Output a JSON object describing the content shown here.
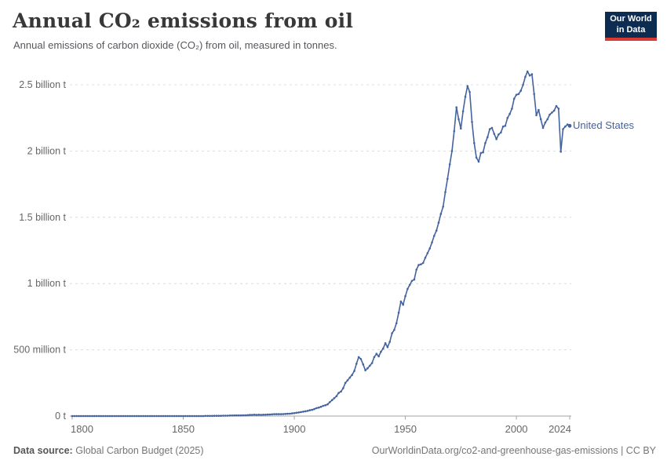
{
  "header": {
    "title": "Annual CO₂ emissions from oil",
    "subtitle": "Annual emissions of carbon dioxide (CO₂) from oil, measured in tonnes.",
    "logo": {
      "line1": "Our World",
      "line2": "in Data"
    }
  },
  "footer": {
    "data_source_label": "Data source:",
    "data_source_value": "Global Carbon Budget (2025)",
    "attribution": "OurWorldinData.org/co2-and-greenhouse-gas-emissions | CC BY"
  },
  "colors": {
    "series_line": "#44639F",
    "logo_navy": "#0C2C52",
    "logo_red": "#D93B33",
    "grid": "#DCDCDC",
    "axis": "#A3A3A3",
    "tick_text": "#666666"
  },
  "chart_data": {
    "type": "line",
    "title": "Annual CO₂ emissions from oil",
    "subtitle": "Annual emissions of carbon dioxide (CO₂) from oil, measured in tonnes.",
    "xlabel": "",
    "ylabel": "",
    "values_unit": "million tonnes of CO₂",
    "xlim": [
      1800,
      2024
    ],
    "ylim": [
      0,
      2600
    ],
    "grid": "horizontal-dashed",
    "legend": "end-of-line-label",
    "x_ticks": [
      1800,
      1850,
      1900,
      1950,
      2000,
      2024
    ],
    "y_ticks": [
      {
        "value": 0,
        "label": "0 t"
      },
      {
        "value": 500,
        "label": "500 million t"
      },
      {
        "value": 1000,
        "label": "1 billion t"
      },
      {
        "value": 1500,
        "label": "1.5 billion t"
      },
      {
        "value": 2000,
        "label": "2 billion t"
      },
      {
        "value": 2500,
        "label": "2.5 billion t"
      }
    ],
    "series": [
      {
        "name": "United States",
        "color": "#44639F",
        "year_start": 1800,
        "year_end": 2024,
        "values": [
          0,
          0,
          0,
          0,
          0,
          0,
          0,
          0,
          0,
          0,
          0,
          0,
          0,
          0,
          0,
          0,
          0,
          0,
          0,
          0,
          0,
          0,
          0,
          0,
          0,
          0,
          0,
          0,
          0,
          0,
          0,
          0,
          0,
          0,
          0,
          0,
          0,
          0,
          0,
          0,
          0,
          0,
          0,
          0,
          0,
          0,
          0,
          0,
          0,
          0,
          0,
          0,
          0,
          0,
          0,
          0,
          0,
          0,
          0,
          0,
          1,
          1,
          1,
          1,
          2,
          2,
          2,
          2,
          3,
          3,
          3,
          4,
          4,
          5,
          5,
          5,
          5,
          6,
          6,
          7,
          8,
          9,
          10,
          9,
          10,
          9,
          10,
          10,
          11,
          12,
          13,
          14,
          14,
          14,
          14,
          15,
          16,
          17,
          18,
          20,
          22,
          25,
          27,
          30,
          33,
          36,
          39,
          44,
          47,
          53,
          60,
          64,
          70,
          77,
          82,
          88,
          105,
          120,
          135,
          150,
          175,
          185,
          210,
          250,
          270,
          290,
          310,
          340,
          395,
          445,
          430,
          390,
          345,
          360,
          380,
          400,
          445,
          470,
          450,
          485,
          510,
          550,
          520,
          560,
          625,
          650,
          700,
          780,
          865,
          840,
          905,
          960,
          990,
          1020,
          1030,
          1105,
          1140,
          1145,
          1155,
          1195,
          1230,
          1265,
          1310,
          1360,
          1400,
          1460,
          1525,
          1580,
          1690,
          1790,
          1900,
          2000,
          2150,
          2330,
          2240,
          2170,
          2300,
          2410,
          2490,
          2445,
          2220,
          2060,
          1950,
          1920,
          1985,
          1990,
          2060,
          2105,
          2165,
          2175,
          2130,
          2090,
          2125,
          2140,
          2185,
          2190,
          2250,
          2280,
          2320,
          2395,
          2425,
          2430,
          2455,
          2500,
          2560,
          2600,
          2570,
          2580,
          2430,
          2270,
          2310,
          2240,
          2175,
          2215,
          2240,
          2275,
          2290,
          2305,
          2340,
          2320,
          1995,
          2165,
          2185,
          2200,
          2190
        ]
      }
    ]
  }
}
